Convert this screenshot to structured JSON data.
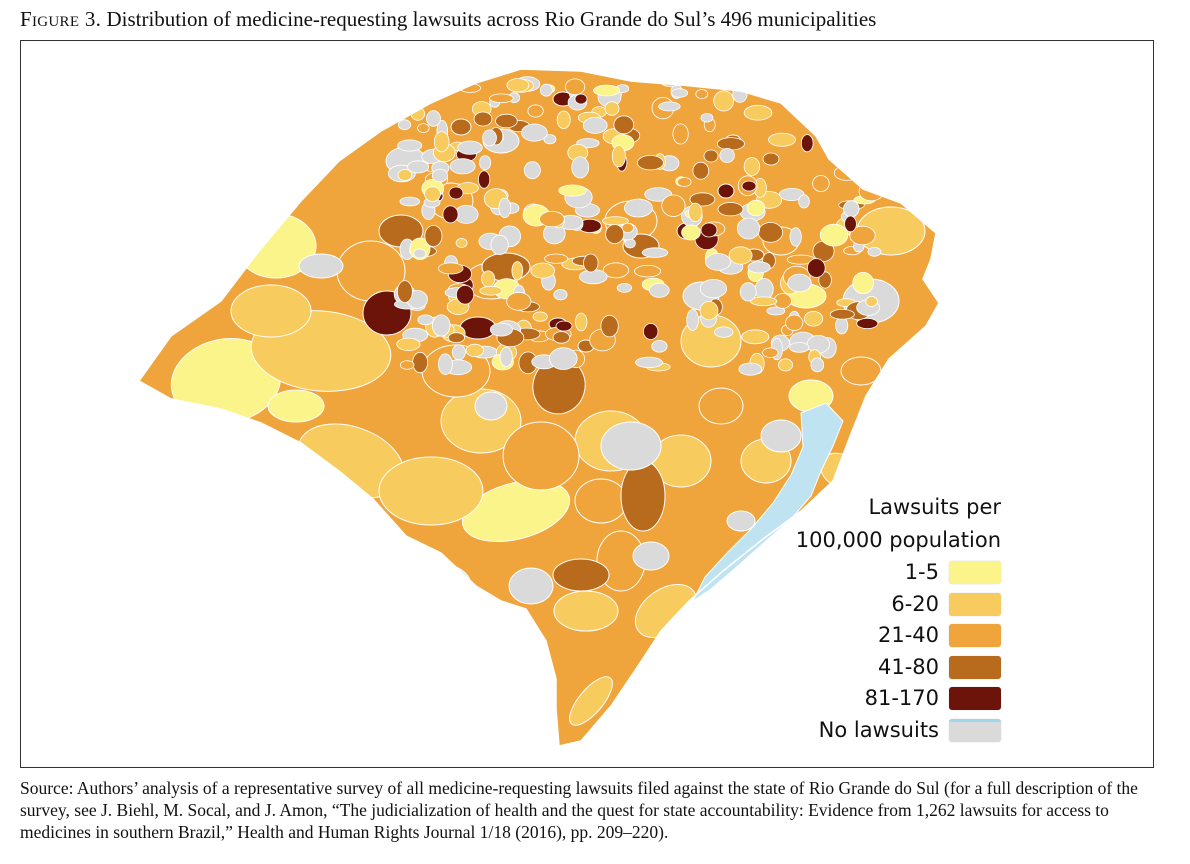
{
  "caption": {
    "label": "Figure 3.",
    "text": "Distribution of medicine-requesting lawsuits across Rio Grande do Sul’s 496 municipalities"
  },
  "legend": {
    "title_line1": "Lawsuits per",
    "title_line2": "100,000 population",
    "classes": [
      {
        "label": "1-5",
        "color": "#fbf48a"
      },
      {
        "label": "6-20",
        "color": "#f8cb5e"
      },
      {
        "label": "21-40",
        "color": "#efa43c"
      },
      {
        "label": "41-80",
        "color": "#b86a1d"
      },
      {
        "label": "81-170",
        "color": "#6c1409"
      },
      {
        "label": "No lawsuits",
        "color": "#dadada"
      }
    ]
  },
  "map_colors": {
    "border": "#ffffff",
    "water": "#bfe3f1"
  },
  "source": "Source: Authors’ analysis of a representative survey of all medicine-requesting lawsuits filed against the state of Rio Grande do Sul (for a full description of the survey, see J. Biehl, M. Socal, and J. Amon, “The judicialization of health and the quest for state accountability: Evidence from 1,262 lawsuits for access to medicines in southern Brazil,” Health and Human Rights Journal 1/18 (2016), pp. 209–220)."
}
